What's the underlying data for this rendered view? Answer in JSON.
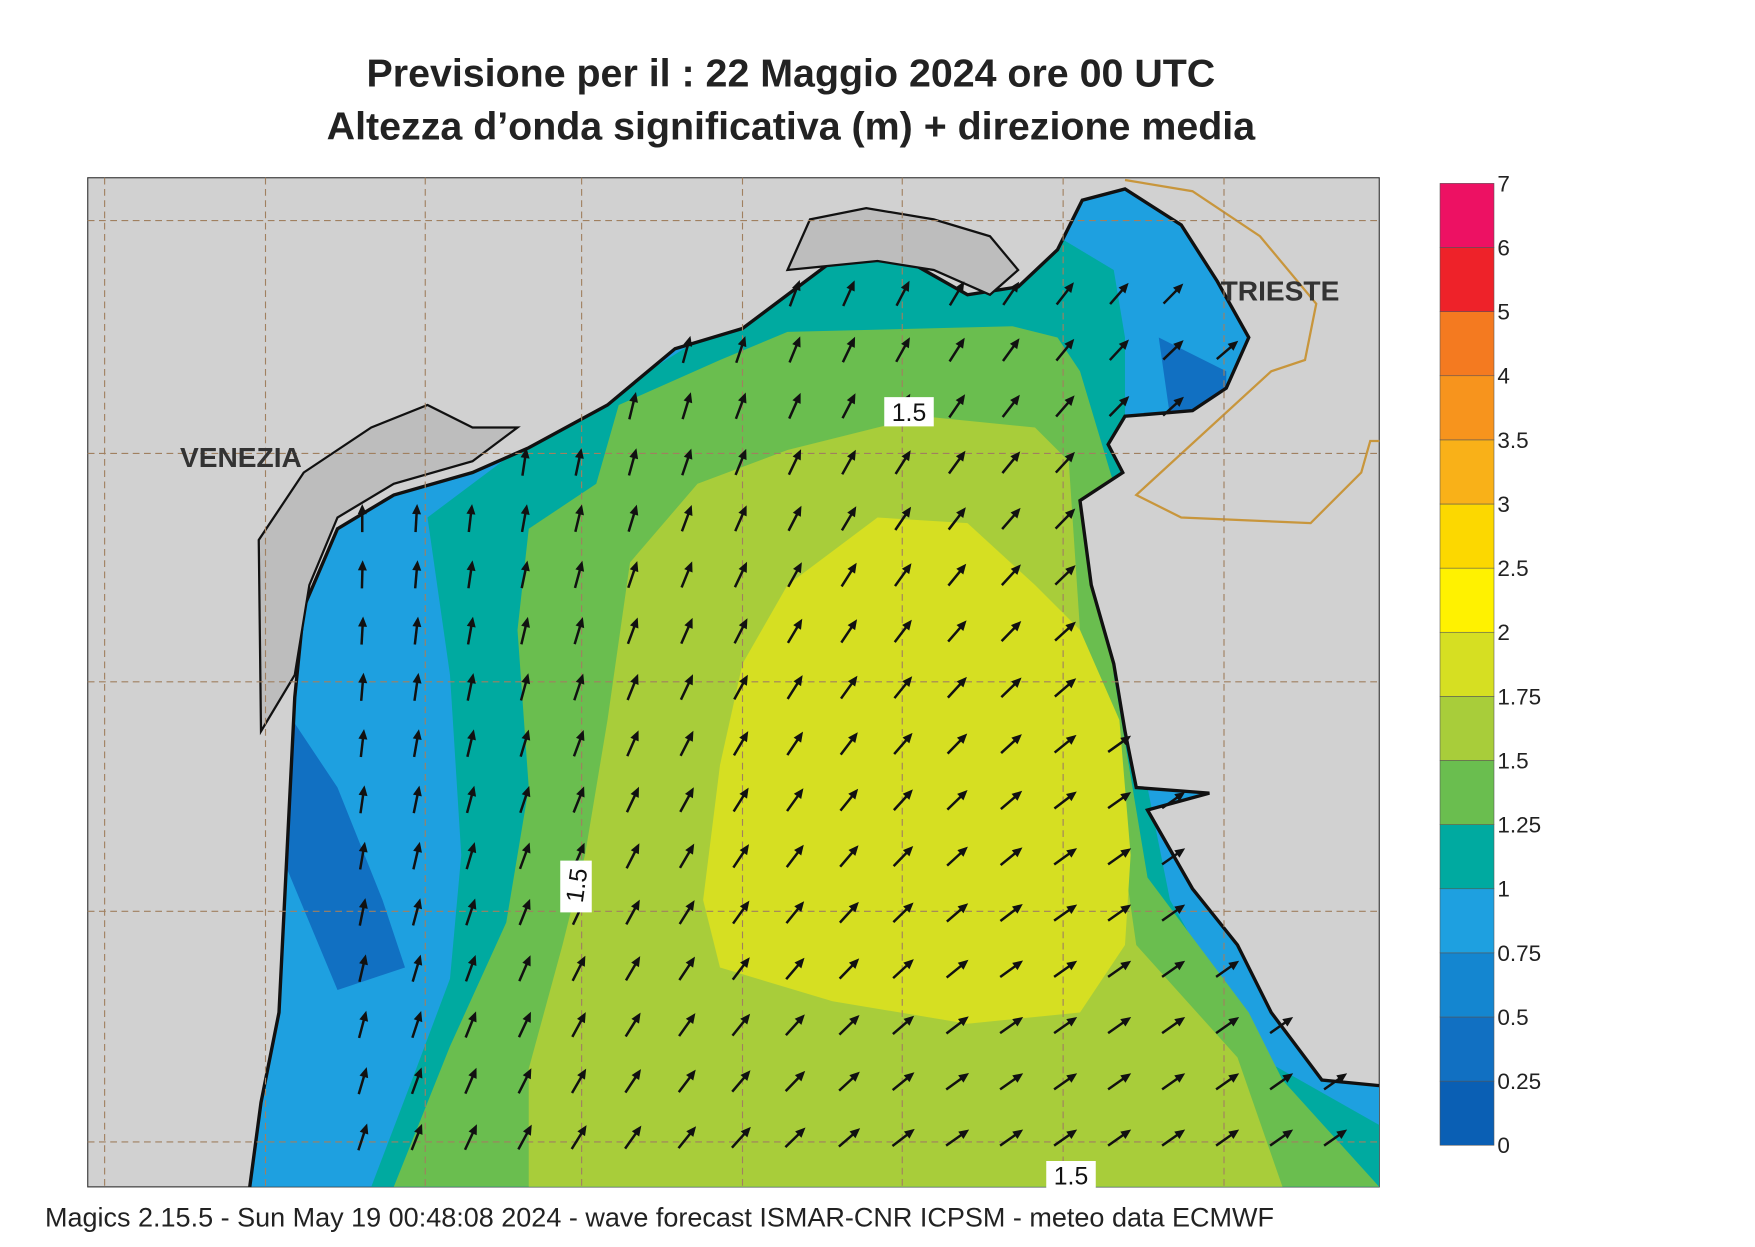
{
  "title": [
    "Previsione per il  :  22   Maggio  2024   ore 00 UTC",
    "Altezza d’onda significativa (m) + direzione media"
  ],
  "map": {
    "places": [
      "VENEZIA",
      "TRIESTE"
    ],
    "contour_labels": [
      1.5,
      1.5,
      1.5
    ]
  },
  "legend": {
    "ticks": [
      0,
      0.25,
      0.5,
      0.75,
      1,
      1.25,
      1.5,
      1.75,
      2,
      2.5,
      3,
      3.5,
      4,
      5,
      6,
      7
    ],
    "colors": [
      "#0a5fb4",
      "#1170c2",
      "#1486d0",
      "#1ea0e0",
      "#00aaa0",
      "#6abe4f",
      "#a8cd3a",
      "#d6df22",
      "#fff200",
      "#fcd800",
      "#f9b118",
      "#f7941d",
      "#f47a20",
      "#ee2229",
      "#ed1163"
    ]
  },
  "footer": "Magics 2.15.5 - Sun May 19 00:48:08 2024 - wave forecast  ISMAR-CNR  ICPSM - meteo data   ECMWF"
}
